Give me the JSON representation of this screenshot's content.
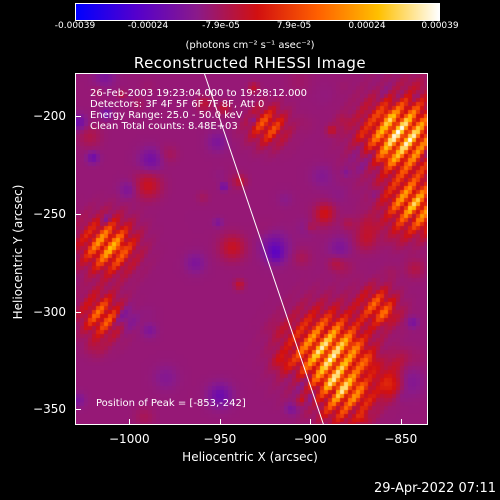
{
  "colorbar": {
    "ticks": [
      "-0.00039",
      "-0.00024",
      "-7.9e-05",
      "7.9e-05",
      "0.00024",
      "0.00039"
    ],
    "units": "(photons cm⁻² s⁻¹ asec⁻²)",
    "colors": [
      "#0000ff",
      "#5500cc",
      "#8a1a8a",
      "#d21010",
      "#ff6000",
      "#ffc000",
      "#ffffff"
    ]
  },
  "title": "Reconstructed RHESSI Image",
  "annotations": {
    "time": "26-Feb-2003 19:23:04.000 to 19:28:12.000",
    "detectors": "Detectors: 3F 4F 5F 6F 7F 8F, Att 0",
    "energy": "Energy Range: 25.0 - 50.0 keV",
    "clean": "Clean     Total counts: 8.48E+03",
    "peak": "Position of Peak = [-853,-242]"
  },
  "axes": {
    "xlabel": "Heliocentric X (arcsec)",
    "ylabel": "Heliocentric Y (arcsec)",
    "xticks": [
      "-1000",
      "-950",
      "-900",
      "-850"
    ],
    "yticks": [
      "-200",
      "-250",
      "-300",
      "-350"
    ],
    "xrange": [
      -1030,
      -835
    ],
    "yrange": [
      -178,
      -358
    ]
  },
  "limb_line": {
    "x1": -959,
    "y1": -178,
    "x2": -893,
    "y2": -358
  },
  "footer": {
    "date": "29-Apr-2022 07:11"
  }
}
